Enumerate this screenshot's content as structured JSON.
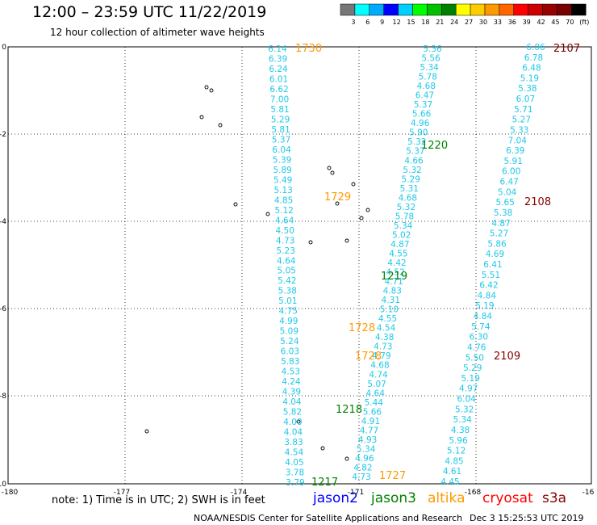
{
  "title": "12:00 – 23:59 UTC 11/22/2019",
  "subtitle": "12 hour collection of altimeter wave heights",
  "scale": {
    "labels": [
      "3",
      "6",
      "9",
      "12",
      "15",
      "18",
      "21",
      "24",
      "27",
      "30",
      "33",
      "36",
      "39",
      "42",
      "45",
      "70",
      "(ft)"
    ],
    "colors": [
      "#777777",
      "#00ffff",
      "#00aaff",
      "#0000ff",
      "#00d0ff",
      "#00ff00",
      "#00c000",
      "#008000",
      "#ffff00",
      "#ffcc00",
      "#ff9900",
      "#ff6600",
      "#ff0000",
      "#cc0000",
      "#990000",
      "#770000",
      "#000000"
    ]
  },
  "axes": {
    "x_ticks": [
      "-180",
      "-177",
      "-174",
      "-171",
      "-168",
      "-16"
    ],
    "y_ticks": [
      "0",
      "-2",
      "-4",
      "-6",
      "-8",
      "-10"
    ]
  },
  "tracks": {
    "t1730": {
      "label": "1730",
      "color": "#ff9900",
      "values": [
        "6.14",
        "6.39",
        "6.24",
        "6.01",
        "6.62",
        "7.00",
        "5.81",
        "5.29",
        "5.81",
        "5.37",
        "6.04",
        "5.39",
        "5.89",
        "5.49",
        "5.13",
        "4.85",
        "5.12",
        "4.64",
        "4.50",
        "4.73",
        "5.23",
        "4.64",
        "5.05",
        "5.42",
        "5.38",
        "5.01",
        "4.75",
        "4.99",
        "5.09",
        "5.24",
        "6.03",
        "5.83",
        "4.53",
        "4.24",
        "4.39",
        "4.04",
        "5.82",
        "4.00",
        "4.04",
        "3.83",
        "4.54",
        "4.05",
        "3.78",
        "3.79"
      ]
    },
    "t1220": {
      "label": "1220",
      "color": "#008000",
      "values": [
        "5.36",
        "5.56",
        "5.34",
        "5.78",
        "4.68",
        "6.47",
        "5.37",
        "5.66",
        "4.96",
        "5.90",
        "5.32",
        "5.37",
        "4.66",
        "5.32",
        "5.29",
        "5.31",
        "4.68",
        "5.32",
        "5.78",
        "5.34",
        "5.02",
        "4.87",
        "4.55",
        "4.42",
        "4.52",
        "4.71",
        "4.83",
        "4.31",
        "5.10",
        "4.55",
        "4.54",
        "4.38",
        "4.73",
        "4.79",
        "4.68",
        "4.74",
        "5.07",
        "4.64",
        "5.44",
        "5.66",
        "4.91",
        "4.77",
        "4.93",
        "5.34",
        "4.96",
        "4.82",
        "4.73"
      ]
    },
    "t2107": {
      "label": "2107",
      "color": "#880000",
      "values": [
        "6.06",
        "6.78",
        "6.48",
        "5.19",
        "5.38",
        "6.07",
        "5.71",
        "5.27",
        "5.33",
        "7.04",
        "6.39",
        "5.91",
        "6.00",
        "6.47",
        "5.04",
        "5.65",
        "5.38",
        "4.87",
        "5.27",
        "5.86",
        "4.69",
        "6.41",
        "5.51",
        "6.42",
        "4.84",
        "5.19",
        "4.84",
        "5.74",
        "6.30",
        "4.76",
        "5.50",
        "5.29",
        "5.19",
        "4.97",
        "6.04",
        "5.32",
        "5.34",
        "4.38",
        "5.96",
        "5.12",
        "4.85",
        "4.61",
        "4.45"
      ]
    },
    "labels": [
      {
        "text": "1729",
        "color": "#ff9900"
      },
      {
        "text": "2108",
        "color": "#880000"
      },
      {
        "text": "1219",
        "color": "#008000"
      },
      {
        "text": "1728",
        "color": "#ff9900"
      },
      {
        "text": "1728",
        "color": "#ff9900"
      },
      {
        "text": "2109",
        "color": "#880000"
      },
      {
        "text": "1218",
        "color": "#008000"
      },
      {
        "text": "1217",
        "color": "#008000"
      },
      {
        "text": "1727",
        "color": "#ff9900"
      }
    ]
  },
  "note": "note: 1) Time is in UTC; 2) SWH is in feet",
  "satellites": [
    {
      "name": "jason2",
      "color": "#0000ff"
    },
    {
      "name": "jason3",
      "color": "#008000"
    },
    {
      "name": "altika",
      "color": "#ff9900"
    },
    {
      "name": "cryosat",
      "color": "#ff0000"
    },
    {
      "name": "s3a",
      "color": "#880000"
    }
  ],
  "footer": "NOAA/NESDIS Center for Satellite Applications and Research",
  "footer_date": "Dec  3 15:25:53 UTC 2019"
}
